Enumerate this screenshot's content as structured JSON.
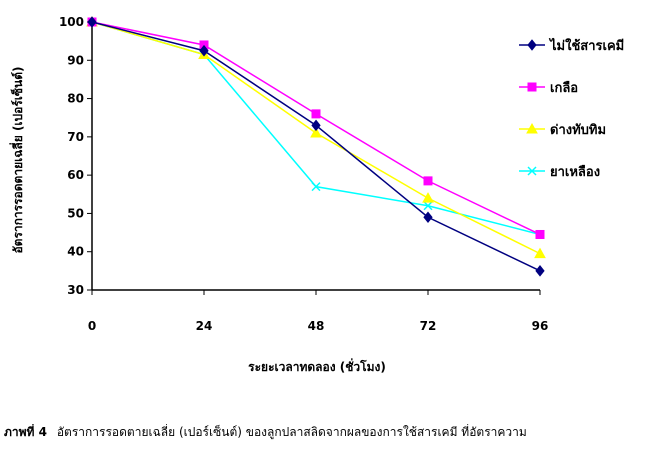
{
  "chart_data": {
    "type": "line",
    "xlabel": "ระยะเวลาทดลอง (ชั่วโมง)",
    "ylabel": "อัตราการรอดตายเฉลี่ย (เปอร์เซ็นต์)",
    "x": [
      0,
      24,
      48,
      72,
      96
    ],
    "x_tick_labels": [
      "0",
      "24",
      "48",
      "72",
      "96"
    ],
    "ylim": [
      30,
      100
    ],
    "y_ticks": [
      30,
      40,
      50,
      60,
      70,
      80,
      90,
      100
    ],
    "grid": false,
    "legend_position": "right",
    "series": [
      {
        "name": "ไม่ใช้สารเคมี",
        "color": "#000080",
        "marker": "diamond",
        "values": [
          100,
          92.5,
          73,
          49,
          35
        ]
      },
      {
        "name": "เกลือ",
        "color": "#FF00FF",
        "marker": "square",
        "values": [
          100,
          94,
          76,
          58.5,
          44.5
        ]
      },
      {
        "name": "ด่างทับทิม",
        "color": "#FFFF00",
        "marker": "triangle",
        "values": [
          100,
          91.5,
          71,
          54,
          39.5
        ]
      },
      {
        "name": "ยาเหลือง",
        "color": "#00FFFF",
        "marker": "x",
        "values": [
          100,
          91.5,
          57,
          52,
          44.5
        ]
      }
    ]
  },
  "caption": {
    "label": "ภาพที่ 4",
    "text": "อัตราการรอดตายเฉลี่ย (เปอร์เซ็นต์) ของลูกปลาสลิดจากผลของการใช้สารเคมี ที่อัตราความ"
  }
}
